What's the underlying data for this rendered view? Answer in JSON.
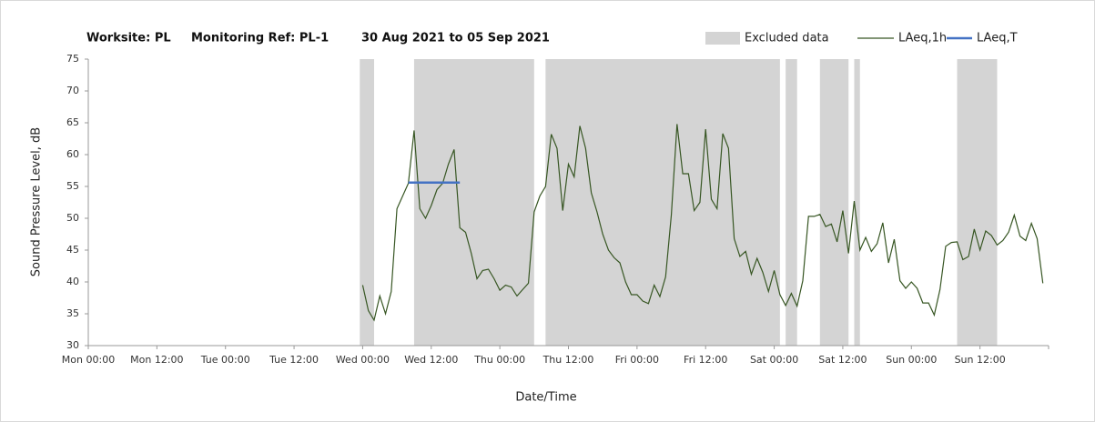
{
  "chart_data": {
    "type": "line",
    "title": [
      "Worksite: PL",
      "Monitoring Ref: PL-1",
      "30 Aug 2021 to 05 Sep 2021"
    ],
    "x_label": "Date/Time",
    "y_label": "Sound Pressure Level, dB",
    "xlim": [
      0,
      168
    ],
    "xticks": [
      {
        "value": 0,
        "label": "Mon 00:00"
      },
      {
        "value": 12,
        "label": "Mon 12:00"
      },
      {
        "value": 24,
        "label": "Tue 00:00"
      },
      {
        "value": 36,
        "label": "Tue 12:00"
      },
      {
        "value": 48,
        "label": "Wed 00:00"
      },
      {
        "value": 60,
        "label": "Wed 12:00"
      },
      {
        "value": 72,
        "label": "Thu 00:00"
      },
      {
        "value": 84,
        "label": "Thu 12:00"
      },
      {
        "value": 96,
        "label": "Fri 00:00"
      },
      {
        "value": 108,
        "label": "Fri 12:00"
      },
      {
        "value": 120,
        "label": "Sat 00:00"
      },
      {
        "value": 132,
        "label": "Sat 12:00"
      },
      {
        "value": 144,
        "label": "Sun 00:00"
      },
      {
        "value": 156,
        "label": "Sun 12:00"
      }
    ],
    "ylim": [
      30,
      75
    ],
    "yticks": [
      30,
      35,
      40,
      45,
      50,
      55,
      60,
      65,
      70,
      75
    ],
    "excluded": {
      "name": "Excluded data",
      "color": "#d4d4d4",
      "ranges": [
        [
          47.5,
          50
        ],
        [
          57,
          78
        ],
        [
          80,
          121
        ],
        [
          122,
          124
        ],
        [
          128,
          133
        ],
        [
          134,
          135
        ],
        [
          152,
          159
        ]
      ]
    },
    "series": [
      {
        "name": "LAeq,1h",
        "color": "#375623",
        "x": [
          48,
          49,
          50,
          51,
          52,
          53,
          54,
          55,
          56,
          57,
          58,
          59,
          60,
          61,
          62,
          63,
          64,
          65,
          66,
          67,
          68,
          69,
          70,
          71,
          72,
          73,
          74,
          75,
          76,
          77,
          78,
          79,
          80,
          81,
          82,
          83,
          84,
          85,
          86,
          87,
          88,
          89,
          90,
          91,
          92,
          93,
          94,
          95,
          96,
          97,
          98,
          99,
          100,
          101,
          102,
          103,
          104,
          105,
          106,
          107,
          108,
          109,
          110,
          111,
          112,
          113,
          114,
          115,
          116,
          117,
          118,
          119,
          120,
          121,
          122,
          123,
          124,
          125,
          126,
          127,
          128,
          129,
          130,
          131,
          132,
          133,
          134,
          135,
          136,
          137,
          138,
          139,
          140,
          141,
          142,
          143,
          144,
          145,
          146,
          147,
          148,
          149,
          150,
          151,
          152,
          153,
          154,
          155,
          156,
          157,
          158,
          159,
          160,
          161,
          162,
          163,
          164,
          165,
          166,
          167
        ],
        "values": [
          39.5,
          35.5,
          34,
          37.8,
          35,
          38.5,
          51.5,
          53.5,
          55.5,
          63.8,
          51.5,
          50,
          52,
          54.5,
          55.5,
          58.5,
          60.8,
          48.5,
          47.8,
          44.5,
          40.5,
          41.8,
          42,
          40.5,
          38.7,
          39.5,
          39.2,
          37.8,
          38.8,
          39.8,
          51,
          53.5,
          55,
          63.2,
          61,
          51.2,
          58.5,
          56.5,
          64.5,
          61,
          54,
          51,
          47.5,
          45,
          43.8,
          43,
          40,
          38,
          38,
          37,
          36.6,
          39.5,
          37.7,
          40.8,
          50.5,
          64.8,
          57,
          57,
          51.2,
          52.5,
          64,
          53,
          51.5,
          63.3,
          61,
          46.8,
          44,
          44.8,
          41.2,
          43.7,
          41.5,
          38.5,
          41.8,
          38,
          36.3,
          38.2,
          36.2,
          40.2,
          50.3,
          50.3,
          50.6,
          48.7,
          49.1,
          46.3,
          51.2,
          44.5,
          52.7,
          45,
          47,
          44.8,
          46,
          49.3,
          43,
          46.7,
          40.2,
          39,
          40,
          39,
          36.7,
          36.7,
          34.8,
          38.8,
          45.6,
          46.2,
          46.3,
          43.5,
          44,
          48.3,
          45,
          48,
          47.3,
          45.8,
          46.5,
          47.8,
          50.5,
          47.2,
          46.5,
          49.2,
          46.8,
          39.8
        ]
      },
      {
        "name": "LAeq,T",
        "color": "#4472c4",
        "x": [
          56,
          65
        ],
        "values": [
          55.6,
          55.6
        ]
      }
    ]
  }
}
